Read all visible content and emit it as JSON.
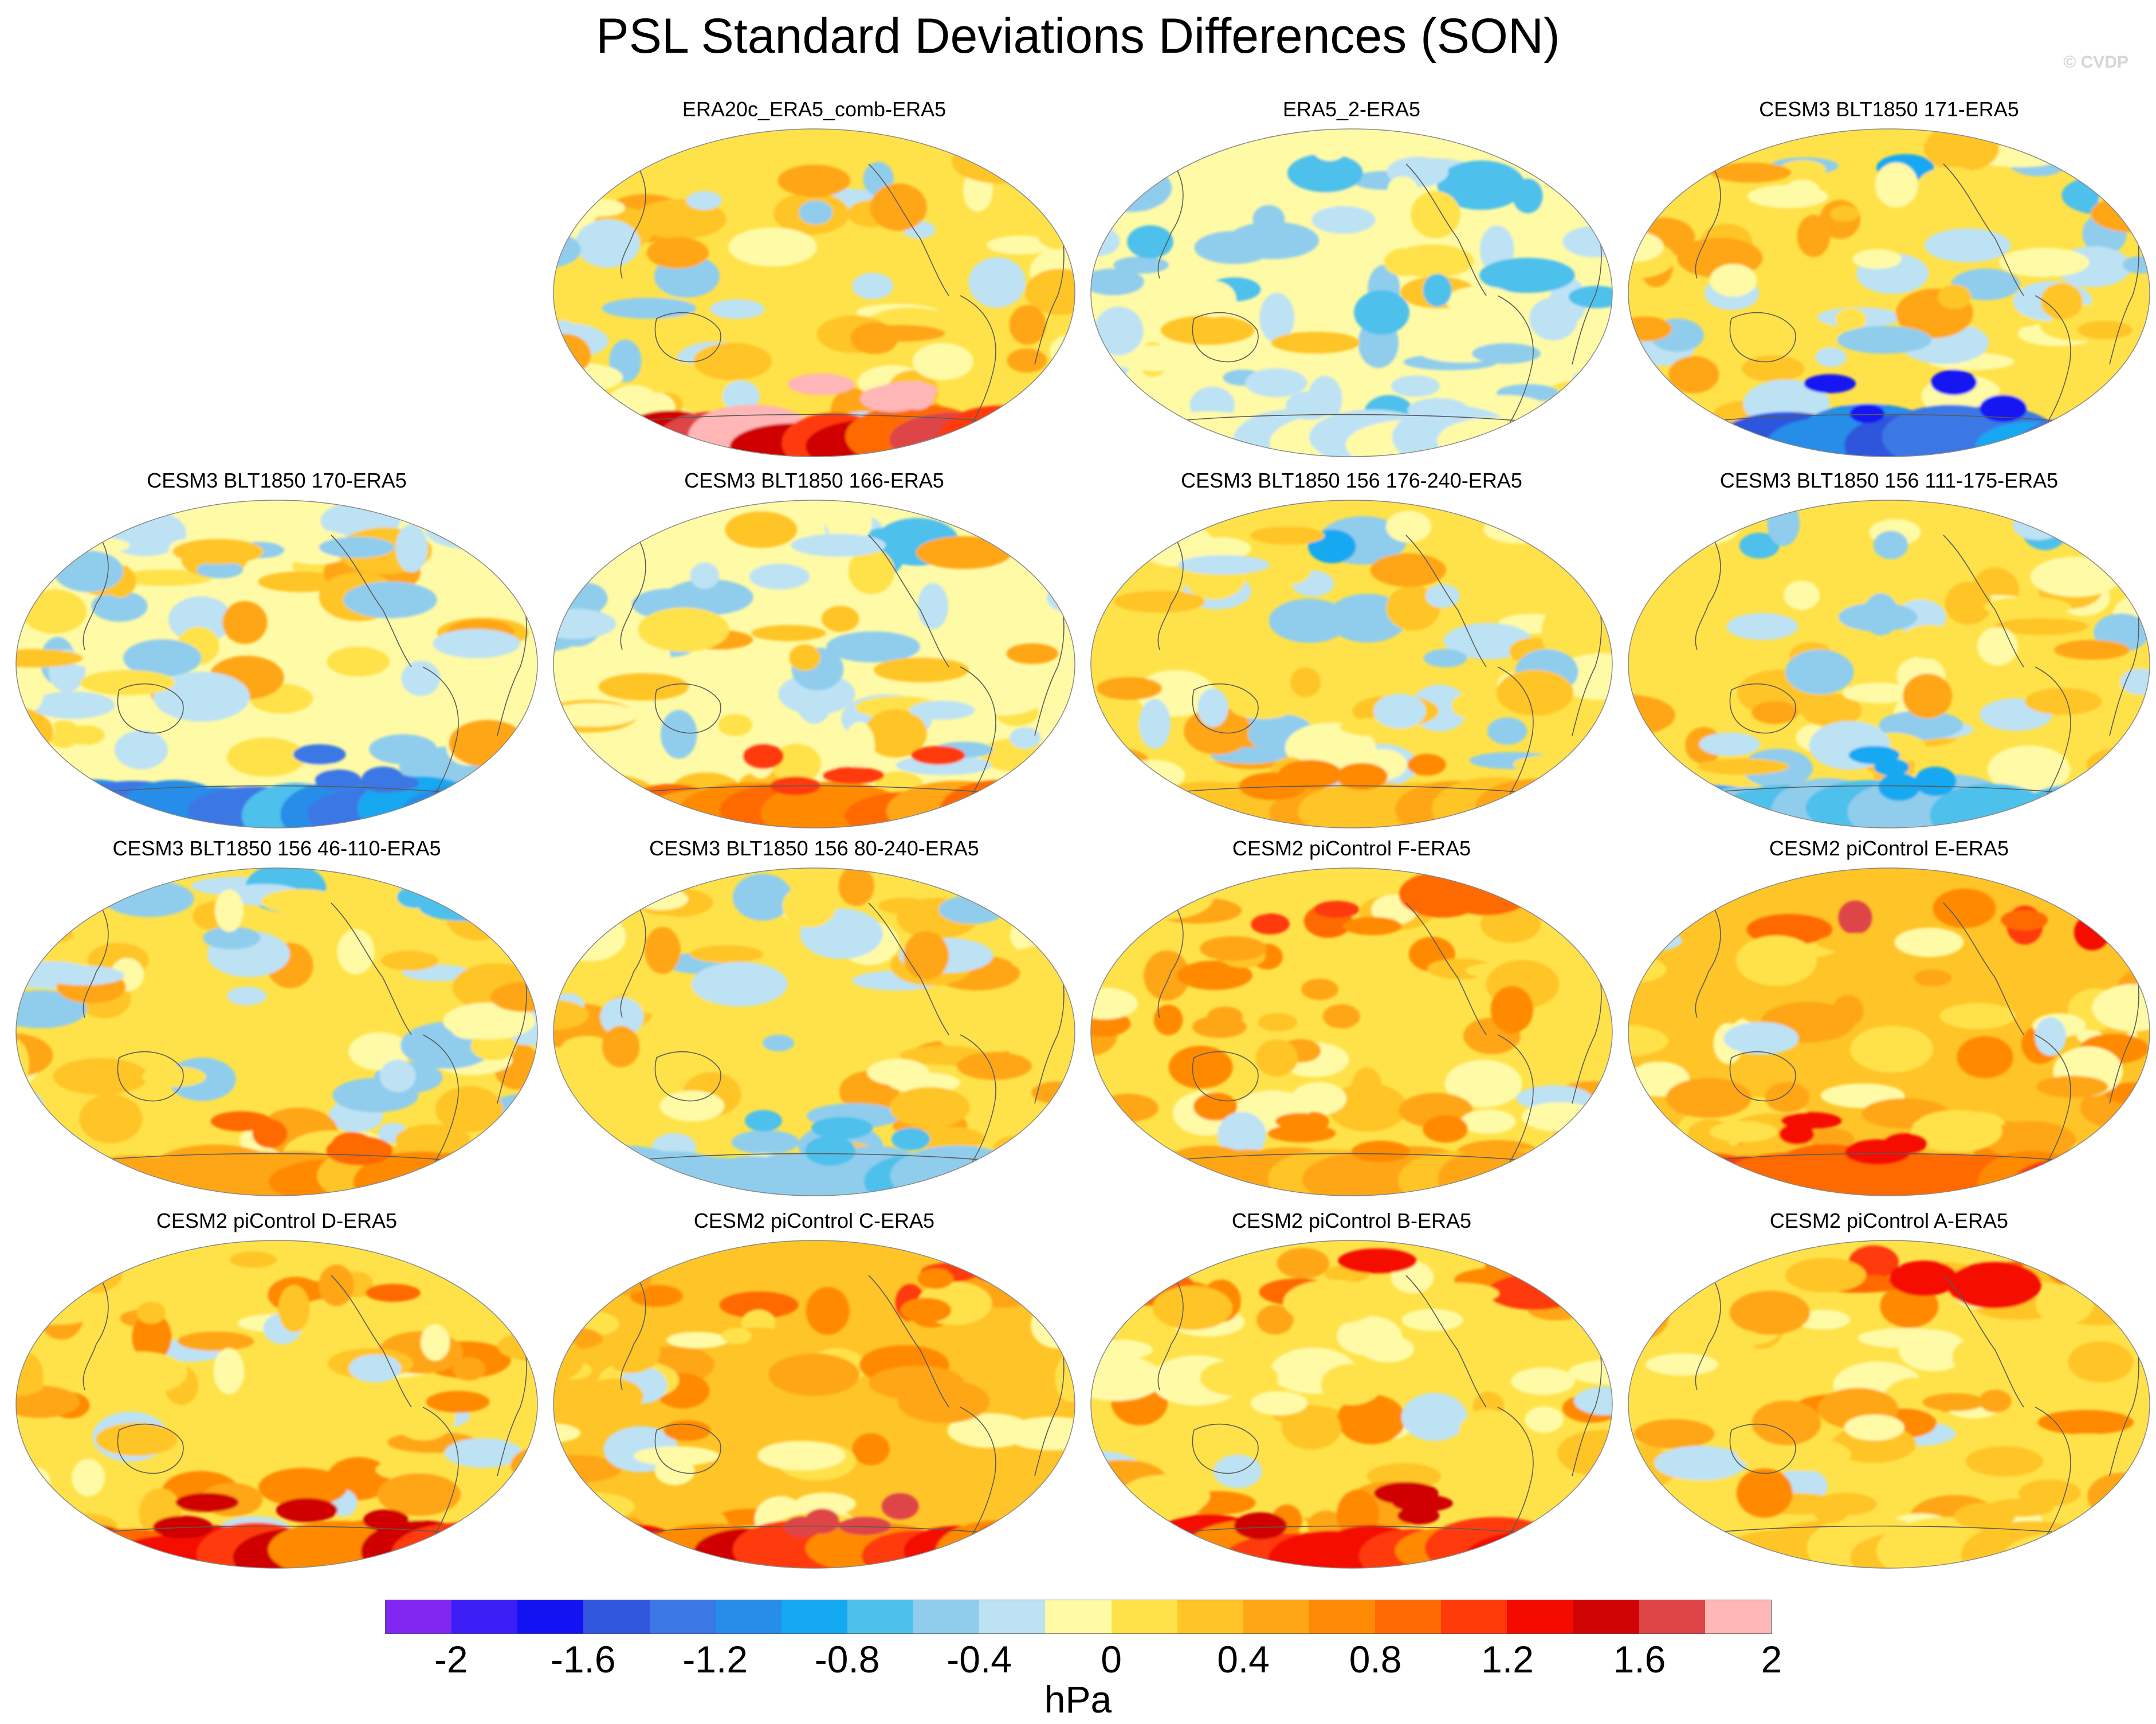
{
  "title": "PSL Standard Deviations Differences (SON)",
  "watermark": "© CVDP",
  "units": "hPa",
  "colors": {
    "levels": [
      "#8028f0",
      "#3b1ef5",
      "#1212f3",
      "#2f56dd",
      "#3b78e6",
      "#268de8",
      "#13a8f0",
      "#4ec0ec",
      "#90cdec",
      "#bde2f4",
      "#fffaa6",
      "#ffe24a",
      "#ffc427",
      "#ffa616",
      "#ff8a06",
      "#ff6a04",
      "#ff3a09",
      "#f50a00",
      "#d00404",
      "#de4546",
      "#ffb6b6"
    ],
    "ocean_base": "#fff7a0",
    "coast": "#5a5a5a"
  },
  "colorbar": {
    "tick_labels": [
      "-2",
      "-1.6",
      "-1.2",
      "-0.8",
      "-0.4",
      "0",
      "0.4",
      "0.8",
      "1.2",
      "1.6",
      "2"
    ]
  },
  "panels": [
    {
      "title": "ERA20c_ERA5_comb-ERA5",
      "bias": 0.15,
      "south": 1.8,
      "north": 0.3,
      "seed": 3
    },
    {
      "title": "ERA5_2-ERA5",
      "bias": -0.1,
      "south": -0.1,
      "north": -0.2,
      "seed": 7
    },
    {
      "title": "CESM3 BLT1850 171-ERA5",
      "bias": 0.1,
      "south": -1.2,
      "north": -0.5,
      "seed": 11
    },
    {
      "title": "CESM3 BLT1850 170-ERA5",
      "bias": 0.05,
      "south": -1.0,
      "north": -0.3,
      "seed": 13
    },
    {
      "title": "CESM3 BLT1850 166-ERA5",
      "bias": 0.05,
      "south": 0.9,
      "north": -0.6,
      "seed": 17
    },
    {
      "title": "CESM3 BLT1850 156 176-240-ERA5",
      "bias": 0.1,
      "south": 0.6,
      "north": -0.4,
      "seed": 19
    },
    {
      "title": "CESM3 BLT1850 156 111-175-ERA5",
      "bias": 0.15,
      "south": -0.6,
      "north": -0.4,
      "seed": 23
    },
    {
      "title": "CESM3 BLT1850 156 46-110-ERA5",
      "bias": 0.1,
      "south": 0.7,
      "north": -0.3,
      "seed": 29
    },
    {
      "title": "CESM3 BLT1850 156 80-240-ERA5",
      "bias": 0.15,
      "south": -0.5,
      "north": -0.2,
      "seed": 31
    },
    {
      "title": "CESM2 piControl F-ERA5",
      "bias": 0.3,
      "south": 0.6,
      "north": 0.6,
      "seed": 37
    },
    {
      "title": "CESM2 piControl E-ERA5",
      "bias": 0.35,
      "south": 1.0,
      "north": 1.2,
      "seed": 41
    },
    {
      "title": "CESM2 piControl D-ERA5",
      "bias": 0.3,
      "south": 1.3,
      "north": 0.6,
      "seed": 43
    },
    {
      "title": "CESM2 piControl C-ERA5",
      "bias": 0.35,
      "south": 1.4,
      "north": 0.8,
      "seed": 47
    },
    {
      "title": "CESM2 piControl B-ERA5",
      "bias": 0.3,
      "south": 1.2,
      "north": 0.7,
      "seed": 53
    },
    {
      "title": "CESM2 piControl A-ERA5",
      "bias": 0.3,
      "south": 0.3,
      "north": 0.9,
      "seed": 59
    }
  ]
}
